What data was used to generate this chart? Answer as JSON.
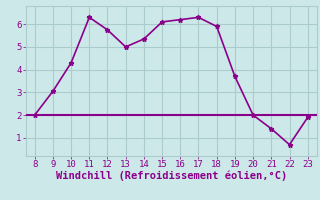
{
  "x": [
    8,
    9,
    10,
    11,
    12,
    13,
    14,
    15,
    16,
    17,
    18,
    19,
    20,
    21,
    22,
    23
  ],
  "y": [
    2.0,
    3.05,
    4.3,
    6.3,
    5.75,
    5.0,
    5.35,
    6.1,
    6.2,
    6.3,
    5.9,
    3.7,
    2.0,
    1.4,
    0.7,
    1.9
  ],
  "hline_y": 2.0,
  "line_color": "#8b008b",
  "hline_color": "#8b008b",
  "bg_color": "#cce8e8",
  "grid_color": "#aacccc",
  "xlabel": "Windchill (Refroidissement éolien,°C)",
  "xlabel_color": "#8b008b",
  "xticks": [
    8,
    9,
    10,
    11,
    12,
    13,
    14,
    15,
    16,
    17,
    18,
    19,
    20,
    21,
    22,
    23
  ],
  "yticks": [
    1,
    2,
    3,
    4,
    5,
    6
  ],
  "ylim": [
    0.2,
    6.8
  ],
  "xlim": [
    7.5,
    23.5
  ],
  "tick_color": "#8b008b",
  "tick_fontsize": 6.5,
  "xlabel_fontsize": 7.5
}
